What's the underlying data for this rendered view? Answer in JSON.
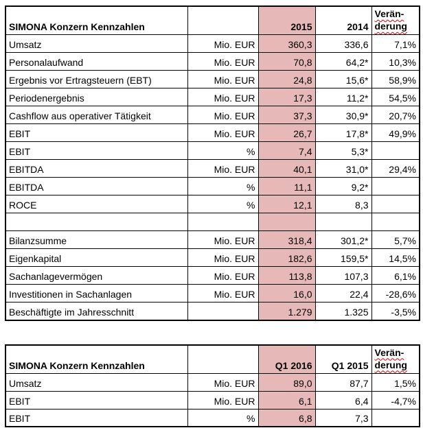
{
  "colors": {
    "highlight_column": "#e6b9b8",
    "border": "#000000",
    "spellcheck_squiggle": "#dd0000"
  },
  "tables": [
    {
      "name": "annual",
      "header": {
        "title": "SIMONA Konzern Kennzahlen",
        "unit": "",
        "current_period": "2015",
        "prior_period": "2014",
        "change_line1": "Verän-",
        "change_line2": "derung"
      },
      "rows": [
        {
          "label": "Umsatz",
          "unit": "Mio. EUR",
          "current": "360,3",
          "prior": "336,6",
          "change": "7,1%"
        },
        {
          "label": "Personalaufwand",
          "unit": "Mio. EUR",
          "current": "70,8",
          "prior": "64,2*",
          "change": "10,3%"
        },
        {
          "label": "Ergebnis vor Ertragsteuern (EBT)",
          "unit": "Mio. EUR",
          "current": "24,8",
          "prior": "15,6*",
          "change": "58,9%"
        },
        {
          "label": "Periodenergebnis",
          "unit": "Mio. EUR",
          "current": "17,3",
          "prior": "11,2*",
          "change": "54,5%"
        },
        {
          "label": "Cashflow aus operativer Tätigkeit",
          "unit": "Mio. EUR",
          "current": "37,3",
          "prior": "30,9*",
          "change": "20,7%"
        },
        {
          "label": "EBIT",
          "unit": "Mio. EUR",
          "current": "26,7",
          "prior": "17,8*",
          "change": "49,9%"
        },
        {
          "label": "EBIT",
          "unit": "%",
          "current": "7,4",
          "prior": "5,3*",
          "change": ""
        },
        {
          "label": "EBITDA",
          "unit": "Mio. EUR",
          "current": "40,1",
          "prior": "31,0*",
          "change": "29,4%"
        },
        {
          "label": "EBITDA",
          "unit": "%",
          "current": "11,1",
          "prior": "9,2*",
          "change": ""
        },
        {
          "label": "ROCE",
          "unit": "%",
          "current": "12,1",
          "prior": "8,3",
          "change": ""
        },
        {
          "label": "",
          "unit": "",
          "current": "",
          "prior": "",
          "change": ""
        },
        {
          "label": "Bilanzsumme",
          "unit": "Mio. EUR",
          "current": "318,4",
          "prior": "301,2*",
          "change": "5,7%"
        },
        {
          "label": "Eigenkapital",
          "unit": "Mio. EUR",
          "current": "182,6",
          "prior": "159,5*",
          "change": "14,5%"
        },
        {
          "label": "Sachanlagevermögen",
          "unit": "Mio. EUR",
          "current": "113,8",
          "prior": "107,3",
          "change": "6,1%"
        },
        {
          "label": "Investitionen in Sachanlagen",
          "unit": "Mio. EUR",
          "current": "16,0",
          "prior": "22,4",
          "change": "-28,6%"
        },
        {
          "label": "Beschäftigte im Jahresschnitt",
          "unit": "",
          "current": "1.279",
          "prior": "1.325",
          "change": "-3,5%"
        }
      ]
    },
    {
      "name": "quarterly",
      "header": {
        "title": "SIMONA Konzern Kennzahlen",
        "unit": "",
        "current_period": "Q1 2016",
        "prior_period": "Q1 2015",
        "change_line1": "Verän-",
        "change_line2": "derung"
      },
      "rows": [
        {
          "label": "Umsatz",
          "unit": "Mio. EUR",
          "current": "89,0",
          "prior": "87,7",
          "change": "1,5%"
        },
        {
          "label": "EBIT",
          "unit": "Mio. EUR",
          "current": "6,1",
          "prior": "6,4",
          "change": "-4,7%"
        },
        {
          "label": "EBIT",
          "unit": "%",
          "current": "6,8",
          "prior": "7,3",
          "change": ""
        }
      ]
    }
  ]
}
